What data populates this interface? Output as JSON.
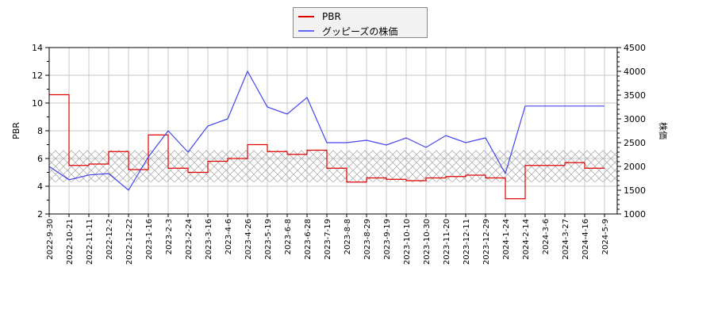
{
  "legend": {
    "items": [
      {
        "label": "PBR",
        "color": "#e00000"
      },
      {
        "label": "グッピーズの株価",
        "color": "#4444ee"
      }
    ]
  },
  "axes": {
    "left_title": "PBR",
    "right_title": "株価",
    "left_ticks": [
      "14",
      "12",
      "10",
      "8",
      "6",
      "4",
      "2"
    ],
    "right_ticks": [
      "4500",
      "4000",
      "3500",
      "3000",
      "2500",
      "2000",
      "1500",
      "1000"
    ],
    "x_ticks": [
      "2022-9-30",
      "2022-10-21",
      "2022-11-11",
      "2022-12-2",
      "2022-12-22",
      "2023-1-16",
      "2023-2-3",
      "2023-2-24",
      "2023-3-16",
      "2023-4-6",
      "2023-4-26",
      "2023-5-19",
      "2023-6-8",
      "2023-6-28",
      "2023-7-19",
      "2023-8-8",
      "2023-8-29",
      "2023-9-19",
      "2023-10-10",
      "2023-10-30",
      "2023-11-20",
      "2023-12-11",
      "2023-12-29",
      "2024-1-24",
      "2024-2-14",
      "2024-3-6",
      "2024-3-27",
      "2024-4-16",
      "2024-5-9"
    ]
  },
  "chart_data": {
    "type": "line",
    "title": "",
    "xlabel": "",
    "ylabel": "PBR",
    "y2label": "株価",
    "ylim": [
      2,
      14
    ],
    "y2lim": [
      1000,
      4500
    ],
    "grid": true,
    "legend_position": "top-center",
    "x": [
      "2022-9-30",
      "2022-10-21",
      "2022-11-11",
      "2022-12-2",
      "2022-12-22",
      "2023-1-16",
      "2023-2-3",
      "2023-2-24",
      "2023-3-16",
      "2023-4-6",
      "2023-4-26",
      "2023-5-19",
      "2023-6-8",
      "2023-6-28",
      "2023-7-19",
      "2023-8-8",
      "2023-8-29",
      "2023-9-19",
      "2023-10-10",
      "2023-10-30",
      "2023-11-20",
      "2023-12-11",
      "2023-12-29",
      "2024-1-24",
      "2024-2-14",
      "2024-3-6",
      "2024-3-27",
      "2024-4-16",
      "2024-5-9"
    ],
    "series": [
      {
        "name": "PBR",
        "axis": "left",
        "color": "#e00000",
        "values": [
          10.6,
          5.5,
          5.6,
          6.5,
          5.2,
          7.7,
          5.3,
          5.0,
          5.8,
          6.0,
          7.0,
          6.5,
          6.3,
          6.6,
          5.3,
          4.3,
          4.6,
          4.5,
          4.4,
          4.6,
          4.7,
          4.8,
          4.6,
          3.1,
          5.5,
          5.5,
          5.7,
          5.3,
          5.3
        ]
      },
      {
        "name": "グッピーズの株価",
        "axis": "right",
        "color": "#4444ee",
        "values": [
          2000,
          1720,
          1820,
          1850,
          1500,
          2200,
          2750,
          2300,
          2850,
          3000,
          4000,
          3250,
          3100,
          3450,
          2500,
          2500,
          2550,
          2450,
          2600,
          2400,
          2650,
          2500,
          2600,
          1850,
          3270,
          3270,
          3270,
          3270,
          3270
        ]
      }
    ],
    "shaded_band": {
      "ymin": 4.3,
      "ymax": 6.6,
      "pattern": "crosshatch"
    }
  }
}
